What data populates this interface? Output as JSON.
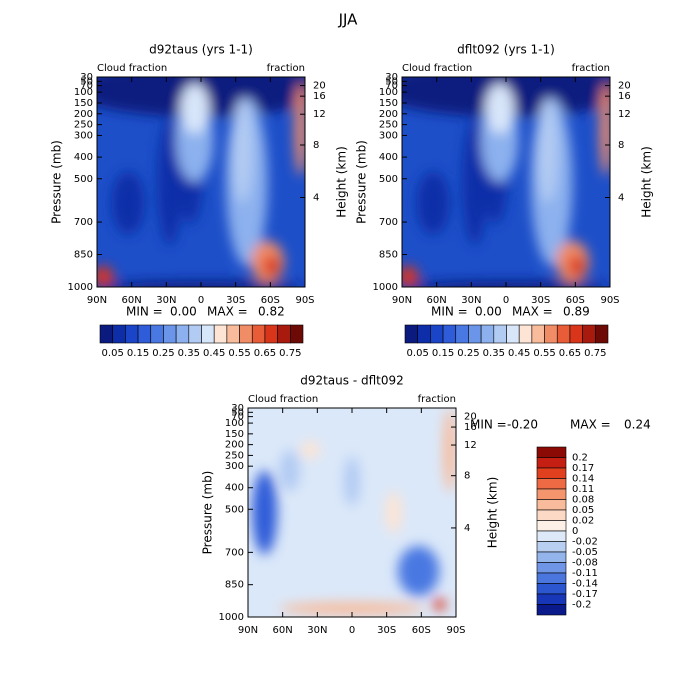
{
  "header": {
    "title": "JJA"
  },
  "chart_data": [
    {
      "type": "contour",
      "title": "d92taus (yrs 1-1)",
      "left_annotation": "Cloud fraction",
      "right_annotation": "fraction",
      "ylabel": "Pressure (mb)",
      "y2label": "Height (km)",
      "xlim": [
        90,
        -90
      ],
      "xticks": [
        {
          "value": 90,
          "label": "90N"
        },
        {
          "value": 60,
          "label": "60N"
        },
        {
          "value": 30,
          "label": "30N"
        },
        0,
        {
          "value": -30,
          "label": "30S"
        },
        {
          "value": -60,
          "label": "60S"
        },
        {
          "value": -90,
          "label": "90S"
        }
      ],
      "ylim": [
        1000,
        30
      ],
      "yticks": [
        30,
        50,
        70,
        100,
        150,
        200,
        250,
        300,
        400,
        500,
        700,
        850,
        1000
      ],
      "y2ticks": [
        4,
        8,
        12,
        16,
        20
      ],
      "stats": {
        "labels": [
          "MIN =",
          "MAX ="
        ],
        "values": [
          0,
          0.82
        ],
        "value_labels": [
          "0.00",
          "0.82"
        ]
      },
      "colorbar": {
        "orientation": "horizontal",
        "lim": [
          0,
          0.8
        ],
        "colors": [
          "#0b1a7f",
          "#0d2ea8",
          "#1a45c8",
          "#2f5cd8",
          "#4a78e2",
          "#6a95e8",
          "#8cb1ee",
          "#b2cbf3",
          "#d8e6fa",
          "#fde4d4",
          "#f8bb9b",
          "#f08c66",
          "#e85d38",
          "#d9351b",
          "#a91a0e",
          "#6e0a06"
        ],
        "ticks": [
          0.05,
          0.15,
          0.25,
          0.35,
          0.45,
          0.55,
          0.65,
          0.75
        ]
      }
    },
    {
      "type": "contour",
      "title": "dflt092 (yrs 1-1)",
      "left_annotation": "Cloud fraction",
      "right_annotation": "fraction",
      "ylabel": "Pressure (mb)",
      "y2label": "Height (km)",
      "xlim": [
        90,
        -90
      ],
      "xticks": [
        {
          "value": 90,
          "label": "90N"
        },
        {
          "value": 60,
          "label": "60N"
        },
        {
          "value": 30,
          "label": "30N"
        },
        0,
        {
          "value": -30,
          "label": "30S"
        },
        {
          "value": -60,
          "label": "60S"
        },
        {
          "value": -90,
          "label": "90S"
        }
      ],
      "ylim": [
        1000,
        30
      ],
      "yticks": [
        30,
        50,
        70,
        100,
        150,
        200,
        250,
        300,
        400,
        500,
        700,
        850,
        1000
      ],
      "y2ticks": [
        4,
        8,
        12,
        16,
        20
      ],
      "stats": {
        "labels": [
          "MIN =",
          "MAX ="
        ],
        "values": [
          0,
          0.89
        ],
        "value_labels": [
          "0.00",
          "0.89"
        ]
      },
      "colorbar": {
        "orientation": "horizontal",
        "lim": [
          0,
          0.8
        ],
        "colors": [
          "#0b1a7f",
          "#0d2ea8",
          "#1a45c8",
          "#2f5cd8",
          "#4a78e2",
          "#6a95e8",
          "#8cb1ee",
          "#b2cbf3",
          "#d8e6fa",
          "#fde4d4",
          "#f8bb9b",
          "#f08c66",
          "#e85d38",
          "#d9351b",
          "#a91a0e",
          "#6e0a06"
        ],
        "ticks": [
          0.05,
          0.15,
          0.25,
          0.35,
          0.45,
          0.55,
          0.65,
          0.75
        ]
      }
    },
    {
      "type": "contour",
      "title": "d92taus - dflt092",
      "left_annotation": "Cloud fraction",
      "right_annotation": "fraction",
      "ylabel": "Pressure (mb)",
      "y2label": "Height (km)",
      "xlim": [
        90,
        -90
      ],
      "xticks": [
        {
          "value": 90,
          "label": "90N"
        },
        {
          "value": 60,
          "label": "60N"
        },
        {
          "value": 30,
          "label": "30N"
        },
        0,
        {
          "value": -30,
          "label": "30S"
        },
        {
          "value": -60,
          "label": "60S"
        },
        {
          "value": -90,
          "label": "90S"
        }
      ],
      "ylim": [
        1000,
        30
      ],
      "yticks": [
        30,
        50,
        70,
        100,
        150,
        200,
        250,
        300,
        400,
        500,
        700,
        850,
        1000
      ],
      "y2ticks": [
        4,
        8,
        12,
        16,
        20
      ],
      "stats": {
        "labels": [
          "MIN =",
          "MAX ="
        ],
        "values": [
          -0.2,
          0.24
        ],
        "value_labels": [
          "-0.20",
          "0.24"
        ]
      },
      "colorbar": {
        "orientation": "vertical",
        "colors": [
          "#8b0a06",
          "#c41f12",
          "#e0401e",
          "#ee6a44",
          "#f4956e",
          "#f8bb9b",
          "#fbd9c5",
          "#fdf0e6",
          "#dde8f8",
          "#b9cff2",
          "#94b5ec",
          "#6f96e6",
          "#4a76de",
          "#2c55d0",
          "#1737b8",
          "#0a1a8a"
        ],
        "ticks": [
          0.2,
          0.17,
          0.14,
          0.11,
          0.08,
          0.05,
          0.02,
          0,
          -0.02,
          -0.05,
          -0.08,
          -0.11,
          -0.14,
          -0.17,
          -0.2
        ]
      }
    }
  ]
}
